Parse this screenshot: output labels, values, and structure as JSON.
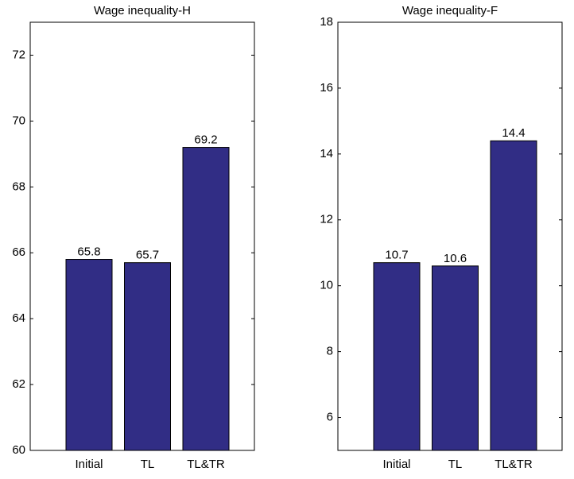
{
  "chart_data": [
    {
      "type": "bar",
      "title": "Wage inequality-H",
      "categories": [
        "Initial",
        "TL",
        "TL&TR"
      ],
      "values": [
        65.8,
        65.7,
        69.2
      ],
      "color": "#312d85",
      "ylim": [
        60,
        73
      ],
      "yticks": [
        60,
        62,
        64,
        66,
        68,
        70,
        72
      ]
    },
    {
      "type": "bar",
      "title": "Wage inequality-F",
      "categories": [
        "Initial",
        "TL",
        "TL&TR"
      ],
      "values": [
        10.7,
        10.6,
        14.4
      ],
      "color": "#312d85",
      "ylim": [
        5,
        18
      ],
      "yticks": [
        6,
        8,
        10,
        12,
        14,
        16,
        18
      ]
    }
  ]
}
